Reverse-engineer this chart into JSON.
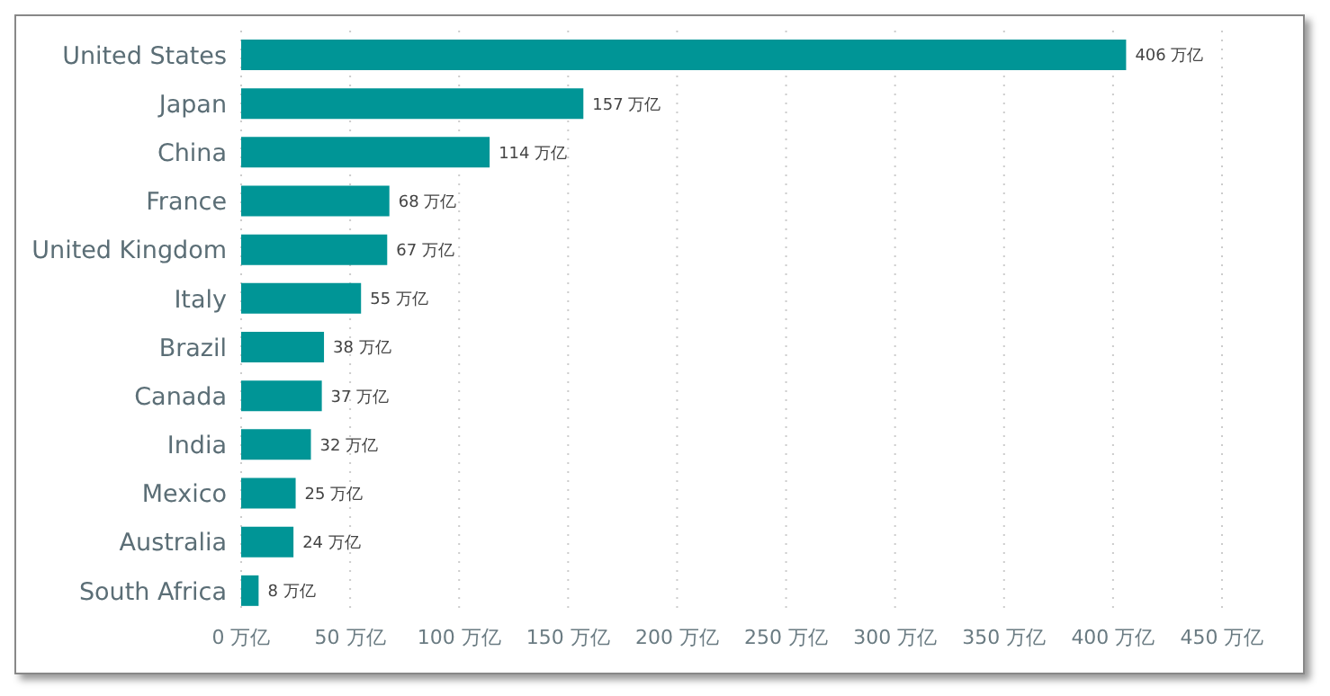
{
  "chart_data": {
    "type": "bar",
    "orientation": "horizontal",
    "categories": [
      "United States",
      "Japan",
      "China",
      "France",
      "United Kingdom",
      "Italy",
      "Brazil",
      "Canada",
      "India",
      "Mexico",
      "Australia",
      "South Africa"
    ],
    "values": [
      406,
      157,
      114,
      68,
      67,
      55,
      38,
      37,
      32,
      25,
      24,
      8
    ],
    "value_labels": [
      "406 万亿",
      "157 万亿",
      "114 万亿",
      "68 万亿",
      "67 万亿",
      "55 万亿",
      "38 万亿",
      "37 万亿",
      "32 万亿",
      "25 万亿",
      "24 万亿",
      "8 万亿"
    ],
    "color": "#009596",
    "xlim": [
      0,
      450
    ],
    "xticks": [
      {
        "value": 0,
        "label": "0 万亿"
      },
      {
        "value": 50,
        "label": "50 万亿"
      },
      {
        "value": 100,
        "label": "100 万亿"
      },
      {
        "value": 150,
        "label": "150 万亿"
      },
      {
        "value": 200,
        "label": "200 万亿"
      },
      {
        "value": 250,
        "label": "250 万亿"
      },
      {
        "value": 300,
        "label": "300 万亿"
      },
      {
        "value": 350,
        "label": "350 万亿"
      },
      {
        "value": 400,
        "label": "400 万亿"
      },
      {
        "value": 450,
        "label": "450 万亿"
      }
    ],
    "grid": "x",
    "legend": false
  }
}
